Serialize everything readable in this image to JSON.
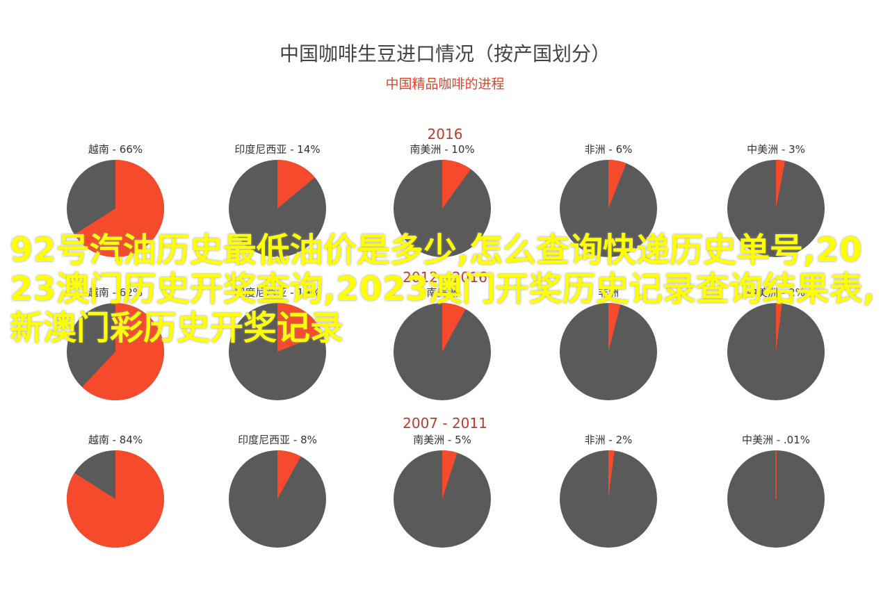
{
  "title": "中国咖啡生豆进口情况（按产国划分）",
  "subtitle": "中国精品咖啡的进程",
  "colors": {
    "primary": "#f54a2b",
    "other": "#5a5a5a",
    "section_title": "#c0392b"
  },
  "overlay_text": "92号汽油历史最低油价是多少,怎么查询快递历史单号,2023澳门历史开奖查询,2023澳门开奖历史记录查询结果表,新澳门彩历史开奖记录",
  "chart_data": [
    {
      "type": "pie",
      "title": "2016",
      "series": [
        {
          "name": "越南",
          "label": "越南 - 66%",
          "value": 66
        },
        {
          "name": "印度尼西亚",
          "label": "印度尼西亚 - 14%",
          "value": 14
        },
        {
          "name": "南美洲",
          "label": "南美洲 - 10%",
          "value": 10
        },
        {
          "name": "非洲",
          "label": "非洲 - 6%",
          "value": 6
        },
        {
          "name": "中美洲",
          "label": "中美洲 - 3%",
          "value": 3
        }
      ]
    },
    {
      "type": "pie",
      "title": "2012 - 2016",
      "series": [
        {
          "name": "越南",
          "label": "越南 - 62%",
          "value": 62
        },
        {
          "name": "印度尼西亚",
          "label": "印度尼西亚 - 19%",
          "value": 19
        },
        {
          "name": "南美洲",
          "label": "南美洲",
          "value": 8
        },
        {
          "name": "非洲",
          "label": "非洲",
          "value": 4
        },
        {
          "name": "中美洲",
          "label": "中美洲 - 2%",
          "value": 2
        }
      ]
    },
    {
      "type": "pie",
      "title": "2007 - 2011",
      "series": [
        {
          "name": "越南",
          "label": "越南 - 84%",
          "value": 84
        },
        {
          "name": "印度尼西亚",
          "label": "印度尼西亚 - 8%",
          "value": 8
        },
        {
          "name": "南美洲",
          "label": "南美洲 - 5%",
          "value": 5
        },
        {
          "name": "非洲",
          "label": "非洲 - 2%",
          "value": 2
        },
        {
          "name": "中美洲",
          "label": "中美洲 - .01%",
          "value": 0.01
        }
      ]
    }
  ]
}
